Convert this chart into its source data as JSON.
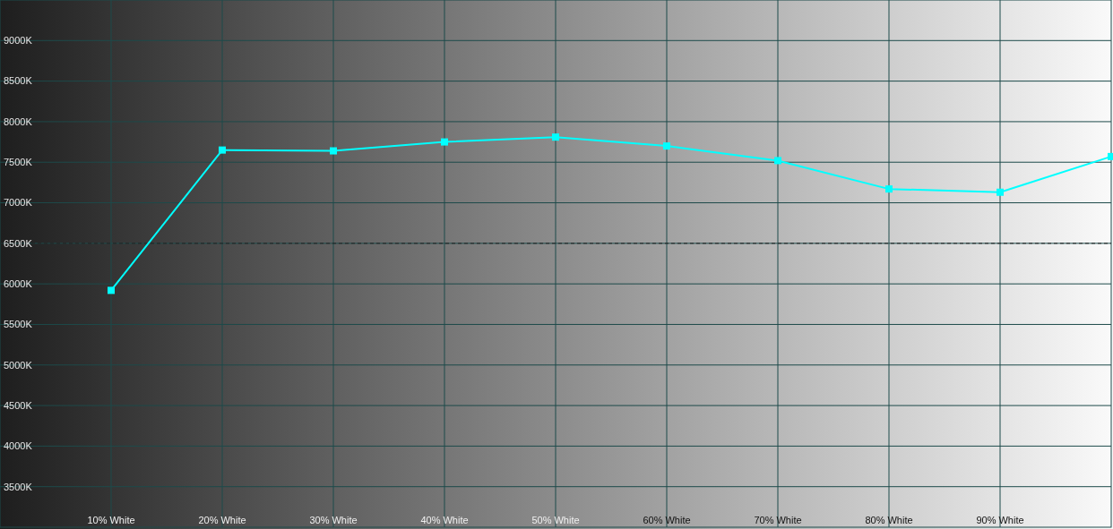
{
  "chart_data": {
    "type": "line",
    "x": [
      10,
      20,
      30,
      40,
      50,
      60,
      70,
      80,
      90,
      100
    ],
    "series": [
      {
        "color": "#00ffff",
        "values": [
          5920,
          7650,
          7640,
          7750,
          7810,
          7700,
          7520,
          7170,
          7130,
          7570
        ]
      }
    ],
    "xlim": [
      0,
      100
    ],
    "xticks": [
      {
        "value": 10,
        "label": "10% White"
      },
      {
        "value": 20,
        "label": "20% White"
      },
      {
        "value": 30,
        "label": "30% White"
      },
      {
        "value": 40,
        "label": "40% White"
      },
      {
        "value": 50,
        "label": "50% White"
      },
      {
        "value": 60,
        "label": "60% White"
      },
      {
        "value": 70,
        "label": "70% White"
      },
      {
        "value": 80,
        "label": "80% White"
      },
      {
        "value": 90,
        "label": "90% White"
      }
    ],
    "ylim": [
      3000,
      9500
    ],
    "yticks": [
      {
        "value": 3500,
        "label": "3500K"
      },
      {
        "value": 4000,
        "label": "4000K"
      },
      {
        "value": 4500,
        "label": "4500K"
      },
      {
        "value": 5000,
        "label": "5000K"
      },
      {
        "value": 5500,
        "label": "5500K"
      },
      {
        "value": 6000,
        "label": "6000K"
      },
      {
        "value": 6500,
        "label": "6500K"
      },
      {
        "value": 7000,
        "label": "7000K"
      },
      {
        "value": 7500,
        "label": "7500K"
      },
      {
        "value": 8000,
        "label": "8000K"
      },
      {
        "value": 8500,
        "label": "8500K"
      },
      {
        "value": 9000,
        "label": "9000K"
      }
    ],
    "grid": true,
    "marker": "square",
    "line_style": "solid",
    "ref_lines": [
      {
        "axis": "y",
        "value": 6500,
        "color": "#222222",
        "line_style": "dashed"
      }
    ]
  }
}
